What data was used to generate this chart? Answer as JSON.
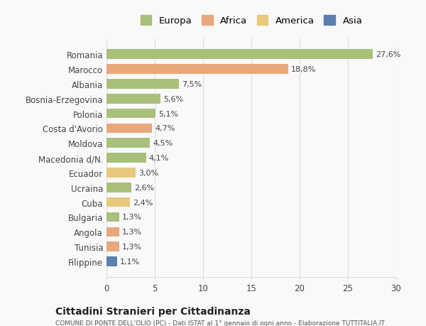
{
  "countries": [
    "Romania",
    "Marocco",
    "Albania",
    "Bosnia-Erzegovina",
    "Polonia",
    "Costa d'Avorio",
    "Moldova",
    "Macedonia d/N.",
    "Ecuador",
    "Ucraina",
    "Cuba",
    "Bulgaria",
    "Angola",
    "Tunisia",
    "Filippine"
  ],
  "values": [
    27.6,
    18.8,
    7.5,
    5.6,
    5.1,
    4.7,
    4.5,
    4.1,
    3.0,
    2.6,
    2.4,
    1.3,
    1.3,
    1.3,
    1.1
  ],
  "labels": [
    "27,6%",
    "18,8%",
    "7,5%",
    "5,6%",
    "5,1%",
    "4,7%",
    "4,5%",
    "4,1%",
    "3,0%",
    "2,6%",
    "2,4%",
    "1,3%",
    "1,3%",
    "1,3%",
    "1,1%"
  ],
  "continent": [
    "Europa",
    "Africa",
    "Europa",
    "Europa",
    "Europa",
    "Africa",
    "Europa",
    "Europa",
    "America",
    "Europa",
    "America",
    "Europa",
    "Africa",
    "Africa",
    "Asia"
  ],
  "colors": {
    "Europa": "#a8c07a",
    "Africa": "#e8a87c",
    "America": "#e8c97c",
    "Asia": "#5b80b0"
  },
  "legend_order": [
    "Europa",
    "Africa",
    "America",
    "Asia"
  ],
  "title": "Cittadini Stranieri per Cittadinanza",
  "subtitle": "COMUNE DI PONTE DELL'OLIO (PC) - Dati ISTAT al 1° gennaio di ogni anno - Elaborazione TUTTITALIA.IT",
  "xlim": [
    0,
    30
  ],
  "xticks": [
    0,
    5,
    10,
    15,
    20,
    25,
    30
  ],
  "bg_color": "#f9f9f9",
  "grid_color": "#dddddd"
}
